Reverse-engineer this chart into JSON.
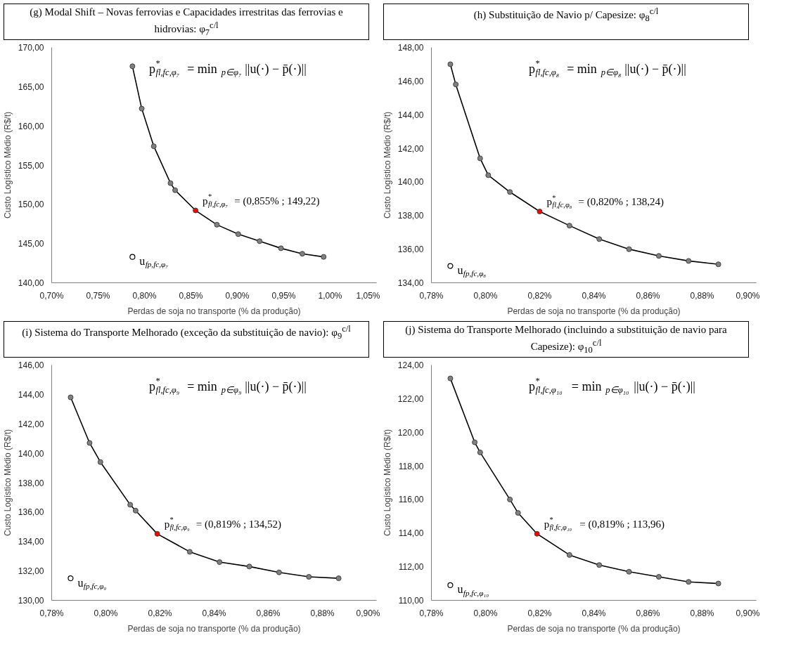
{
  "chart_data": [
    {
      "type": "line",
      "title": "(g) Modal Shift – Novas ferrovias e Capacidades irrestritas das ferrovias e hidrovias: φ$_{7}$$^{c/l}$",
      "xlabel": "Perdas de soja no transporte (% da produção)",
      "ylabel": "Custo Logístico Médio (R$/t)",
      "xlim": [
        0.7,
        1.05
      ],
      "xticks": [
        {
          "value": 0.7,
          "label": "0,70%"
        },
        {
          "value": 0.75,
          "label": "0,75%"
        },
        {
          "value": 0.8,
          "label": "0,80%"
        },
        {
          "value": 0.85,
          "label": "0,85%"
        },
        {
          "value": 0.9,
          "label": "0,90%"
        },
        {
          "value": 0.95,
          "label": "0,95%"
        },
        {
          "value": 1.0,
          "label": "1,00%"
        },
        {
          "value": 1.05,
          "label": "1,05%"
        }
      ],
      "ylim": [
        140,
        170
      ],
      "yticks": [
        {
          "value": 140,
          "label": "140,00"
        },
        {
          "value": 145,
          "label": "145,00"
        },
        {
          "value": 150,
          "label": "150,00"
        },
        {
          "value": 155,
          "label": "155,00"
        },
        {
          "value": 160,
          "label": "160,00"
        },
        {
          "value": 165,
          "label": "165,00"
        },
        {
          "value": 170,
          "label": "170,00"
        }
      ],
      "grid": false,
      "marker": "circle",
      "series": [
        {
          "color": "#000000",
          "x": [
            0.787,
            0.797,
            0.81,
            0.828,
            0.833,
            0.855,
            0.878,
            0.901,
            0.924,
            0.947,
            0.97,
            0.993
          ],
          "values": [
            167.6,
            162.2,
            157.4,
            152.7,
            151.8,
            149.22,
            147.4,
            146.2,
            145.3,
            144.4,
            143.7,
            143.3
          ],
          "colors": [
            "#808080",
            "#808080",
            "#808080",
            "#808080",
            "#808080",
            "#ff0000",
            "#808080",
            "#808080",
            "#808080",
            "#808080",
            "#808080",
            "#808080"
          ]
        },
        {
          "type": "scatter",
          "color": "#ffffff",
          "x": [
            0.787
          ],
          "values": [
            143.3
          ]
        }
      ],
      "annotations": [
        "p$^{*}$$_{fl,fc,φ₇}$= min$_{p∈φ₇}$ ||u(·) − p̄(·)||",
        {
          "text": "p$^{*}$$_{fl,fc,φ₇}$= (0,855% ; 149,22)",
          "x": 0.855,
          "y": 149.22
        },
        {
          "text": "u$_{fp,fc,φ₇}$",
          "x": 0.787,
          "y": 143.3
        }
      ]
    },
    {
      "type": "line",
      "title": "(h) Substituição de Navio p/ Capesize: φ$_{8}$$^{c/l}$",
      "xlabel": "Perdas de soja no transporte (% da produção)",
      "ylabel": "Custo Logístico Médio (R$/t)",
      "xlim": [
        0.78,
        0.9
      ],
      "xticks": [
        {
          "value": 0.78,
          "label": "0,78%"
        },
        {
          "value": 0.8,
          "label": "0,80%"
        },
        {
          "value": 0.82,
          "label": "0,82%"
        },
        {
          "value": 0.84,
          "label": "0,84%"
        },
        {
          "value": 0.86,
          "label": "0,86%"
        },
        {
          "value": 0.88,
          "label": "0,88%"
        },
        {
          "value": 0.9,
          "label": "0,90%"
        }
      ],
      "ylim": [
        134,
        148
      ],
      "yticks": [
        {
          "value": 134,
          "label": "134,00"
        },
        {
          "value": 136,
          "label": "136,00"
        },
        {
          "value": 138,
          "label": "138,00"
        },
        {
          "value": 140,
          "label": "140,00"
        },
        {
          "value": 142,
          "label": "142,00"
        },
        {
          "value": 144,
          "label": "144,00"
        },
        {
          "value": 146,
          "label": "146,00"
        },
        {
          "value": 148,
          "label": "148,00"
        }
      ],
      "grid": false,
      "marker": "circle",
      "series": [
        {
          "color": "#000000",
          "x": [
            0.787,
            0.789,
            0.798,
            0.801,
            0.809,
            0.82,
            0.831,
            0.842,
            0.853,
            0.864,
            0.875,
            0.886
          ],
          "values": [
            147.0,
            145.8,
            141.4,
            140.4,
            139.4,
            138.24,
            137.4,
            136.6,
            136.0,
            135.6,
            135.3,
            135.1
          ],
          "colors": [
            "#808080",
            "#808080",
            "#808080",
            "#808080",
            "#808080",
            "#ff0000",
            "#808080",
            "#808080",
            "#808080",
            "#808080",
            "#808080",
            "#808080"
          ]
        },
        {
          "type": "scatter",
          "color": "#ffffff",
          "x": [
            0.787
          ],
          "values": [
            135.0
          ]
        }
      ],
      "annotations": [
        "p$^{*}$$_{fl,fc,φ₈}$= min$_{p∈φ₈}$ ||u(·) − p̄(·)||",
        {
          "text": "p$^{*}$$_{fl,fc,φ₈}$= (0,820% ; 138,24)",
          "x": 0.82,
          "y": 138.24
        },
        {
          "text": "u$_{fp,fc,φ₈}$",
          "x": 0.787,
          "y": 135.0
        }
      ]
    },
    {
      "type": "line",
      "title": "(i) Sistema do Transporte Melhorado (exceção da substituição de navio): φ$_{9}$$^{c/l}$",
      "xlabel": "Perdas de soja no transporte (% da produção)",
      "ylabel": "Custo Logístico Médio (R$/t)",
      "xlim": [
        0.78,
        0.9
      ],
      "xticks": [
        {
          "value": 0.78,
          "label": "0,78%"
        },
        {
          "value": 0.8,
          "label": "0,80%"
        },
        {
          "value": 0.82,
          "label": "0,82%"
        },
        {
          "value": 0.84,
          "label": "0,84%"
        },
        {
          "value": 0.86,
          "label": "0,86%"
        },
        {
          "value": 0.88,
          "label": "0,88%"
        },
        {
          "value": 0.9,
          "label": "0,90%"
        }
      ],
      "ylim": [
        130,
        146
      ],
      "yticks": [
        {
          "value": 130,
          "label": "130,00"
        },
        {
          "value": 132,
          "label": "132,00"
        },
        {
          "value": 134,
          "label": "134,00"
        },
        {
          "value": 136,
          "label": "136,00"
        },
        {
          "value": 138,
          "label": "138,00"
        },
        {
          "value": 140,
          "label": "140,00"
        },
        {
          "value": 142,
          "label": "142,00"
        },
        {
          "value": 144,
          "label": "144,00"
        },
        {
          "value": 146,
          "label": "146,00"
        }
      ],
      "grid": false,
      "marker": "circle",
      "series": [
        {
          "color": "#000000",
          "x": [
            0.787,
            0.794,
            0.798,
            0.809,
            0.811,
            0.819,
            0.831,
            0.842,
            0.853,
            0.864,
            0.875,
            0.886
          ],
          "values": [
            143.8,
            140.7,
            139.4,
            136.5,
            136.1,
            134.52,
            133.3,
            132.6,
            132.3,
            131.9,
            131.6,
            131.5
          ],
          "colors": [
            "#808080",
            "#808080",
            "#808080",
            "#808080",
            "#808080",
            "#ff0000",
            "#808080",
            "#808080",
            "#808080",
            "#808080",
            "#808080",
            "#808080"
          ]
        },
        {
          "type": "scatter",
          "color": "#ffffff",
          "x": [
            0.787
          ],
          "values": [
            131.5
          ]
        }
      ],
      "annotations": [
        "p$^{*}$$_{fl,fc,φ₉}$= min$_{p∈φ₉}$ ||u(·) − p̄(·)||",
        {
          "text": "p$^{*}$$_{fl,fc,φ₉}$= (0,819% ; 134,52)",
          "x": 0.819,
          "y": 134.52
        },
        {
          "text": "u$_{fp,fc,φ₉}$",
          "x": 0.787,
          "y": 131.5
        }
      ]
    },
    {
      "type": "line",
      "title": "(j) Sistema do Transporte Melhorado (incluindo a substituição de navio para Capesize): φ$_{10}$$^{c/l}$",
      "xlabel": "Perdas de soja no transporte (% da produção)",
      "ylabel": "Custo Logístico Médio (R$/t)",
      "xlim": [
        0.78,
        0.9
      ],
      "xticks": [
        {
          "value": 0.78,
          "label": "0,78%"
        },
        {
          "value": 0.8,
          "label": "0,80%"
        },
        {
          "value": 0.82,
          "label": "0,82%"
        },
        {
          "value": 0.84,
          "label": "0,84%"
        },
        {
          "value": 0.86,
          "label": "0,86%"
        },
        {
          "value": 0.88,
          "label": "0,88%"
        },
        {
          "value": 0.9,
          "label": "0,90%"
        }
      ],
      "ylim": [
        110,
        124
      ],
      "yticks": [
        {
          "value": 110,
          "label": "110,00"
        },
        {
          "value": 112,
          "label": "112,00"
        },
        {
          "value": 114,
          "label": "114,00"
        },
        {
          "value": 116,
          "label": "116,00"
        },
        {
          "value": 118,
          "label": "118,00"
        },
        {
          "value": 120,
          "label": "120,00"
        },
        {
          "value": 122,
          "label": "122,00"
        },
        {
          "value": 124,
          "label": "124,00"
        }
      ],
      "grid": false,
      "marker": "circle",
      "series": [
        {
          "color": "#000000",
          "x": [
            0.787,
            0.796,
            0.798,
            0.809,
            0.812,
            0.819,
            0.831,
            0.842,
            0.853,
            0.864,
            0.875,
            0.886
          ],
          "values": [
            123.2,
            119.4,
            118.8,
            116.0,
            115.2,
            113.96,
            112.7,
            112.1,
            111.7,
            111.4,
            111.1,
            111.0
          ],
          "colors": [
            "#808080",
            "#808080",
            "#808080",
            "#808080",
            "#808080",
            "#ff0000",
            "#808080",
            "#808080",
            "#808080",
            "#808080",
            "#808080",
            "#808080"
          ]
        },
        {
          "type": "scatter",
          "color": "#ffffff",
          "x": [
            0.787
          ],
          "values": [
            110.9
          ]
        }
      ],
      "annotations": [
        "p$^{*}$$_{fl,fc,φ₁₀}$= min$_{p∈φ₁₀}$ ||u(·) − p̄(·)||",
        {
          "text": "p$^{*}$$_{fl,fc,φ₁₀}$= (0,819% ; 113,96)",
          "x": 0.819,
          "y": 113.96
        },
        {
          "text": "u$_{fp,fc,φ₁₀}$",
          "x": 0.787,
          "y": 110.9
        }
      ]
    }
  ]
}
